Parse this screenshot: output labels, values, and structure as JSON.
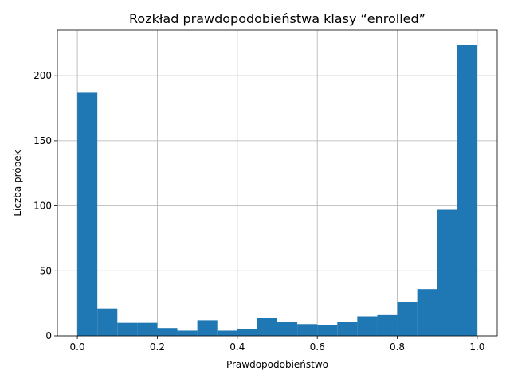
{
  "chart_data": {
    "type": "bar",
    "title": "Rozkład prawdopodobieństwa klasy “enrolled”",
    "xlabel": "Prawdopodobieństwo",
    "ylabel": "Liczba próbek",
    "bin_edges": [
      0.0,
      0.05,
      0.1,
      0.15,
      0.2,
      0.25,
      0.3,
      0.35,
      0.4,
      0.45,
      0.5,
      0.55,
      0.6,
      0.65,
      0.7,
      0.75,
      0.8,
      0.85,
      0.9,
      0.95,
      1.0
    ],
    "values": [
      187,
      21,
      10,
      10,
      6,
      4,
      12,
      4,
      5,
      14,
      11,
      9,
      8,
      11,
      15,
      16,
      26,
      36,
      97,
      224
    ],
    "xlim": [
      -0.05,
      1.05
    ],
    "ylim": [
      0,
      235
    ],
    "xticks": [
      0.0,
      0.2,
      0.4,
      0.6,
      0.8,
      1.0
    ],
    "xtick_labels": [
      "0.0",
      "0.2",
      "0.4",
      "0.6",
      "0.8",
      "1.0"
    ],
    "yticks": [
      0,
      50,
      100,
      150,
      200
    ],
    "ytick_labels": [
      "0",
      "50",
      "100",
      "150",
      "200"
    ],
    "grid": true,
    "colors": {
      "bar": "#1f77b4",
      "grid": "#b0b0b0"
    }
  }
}
